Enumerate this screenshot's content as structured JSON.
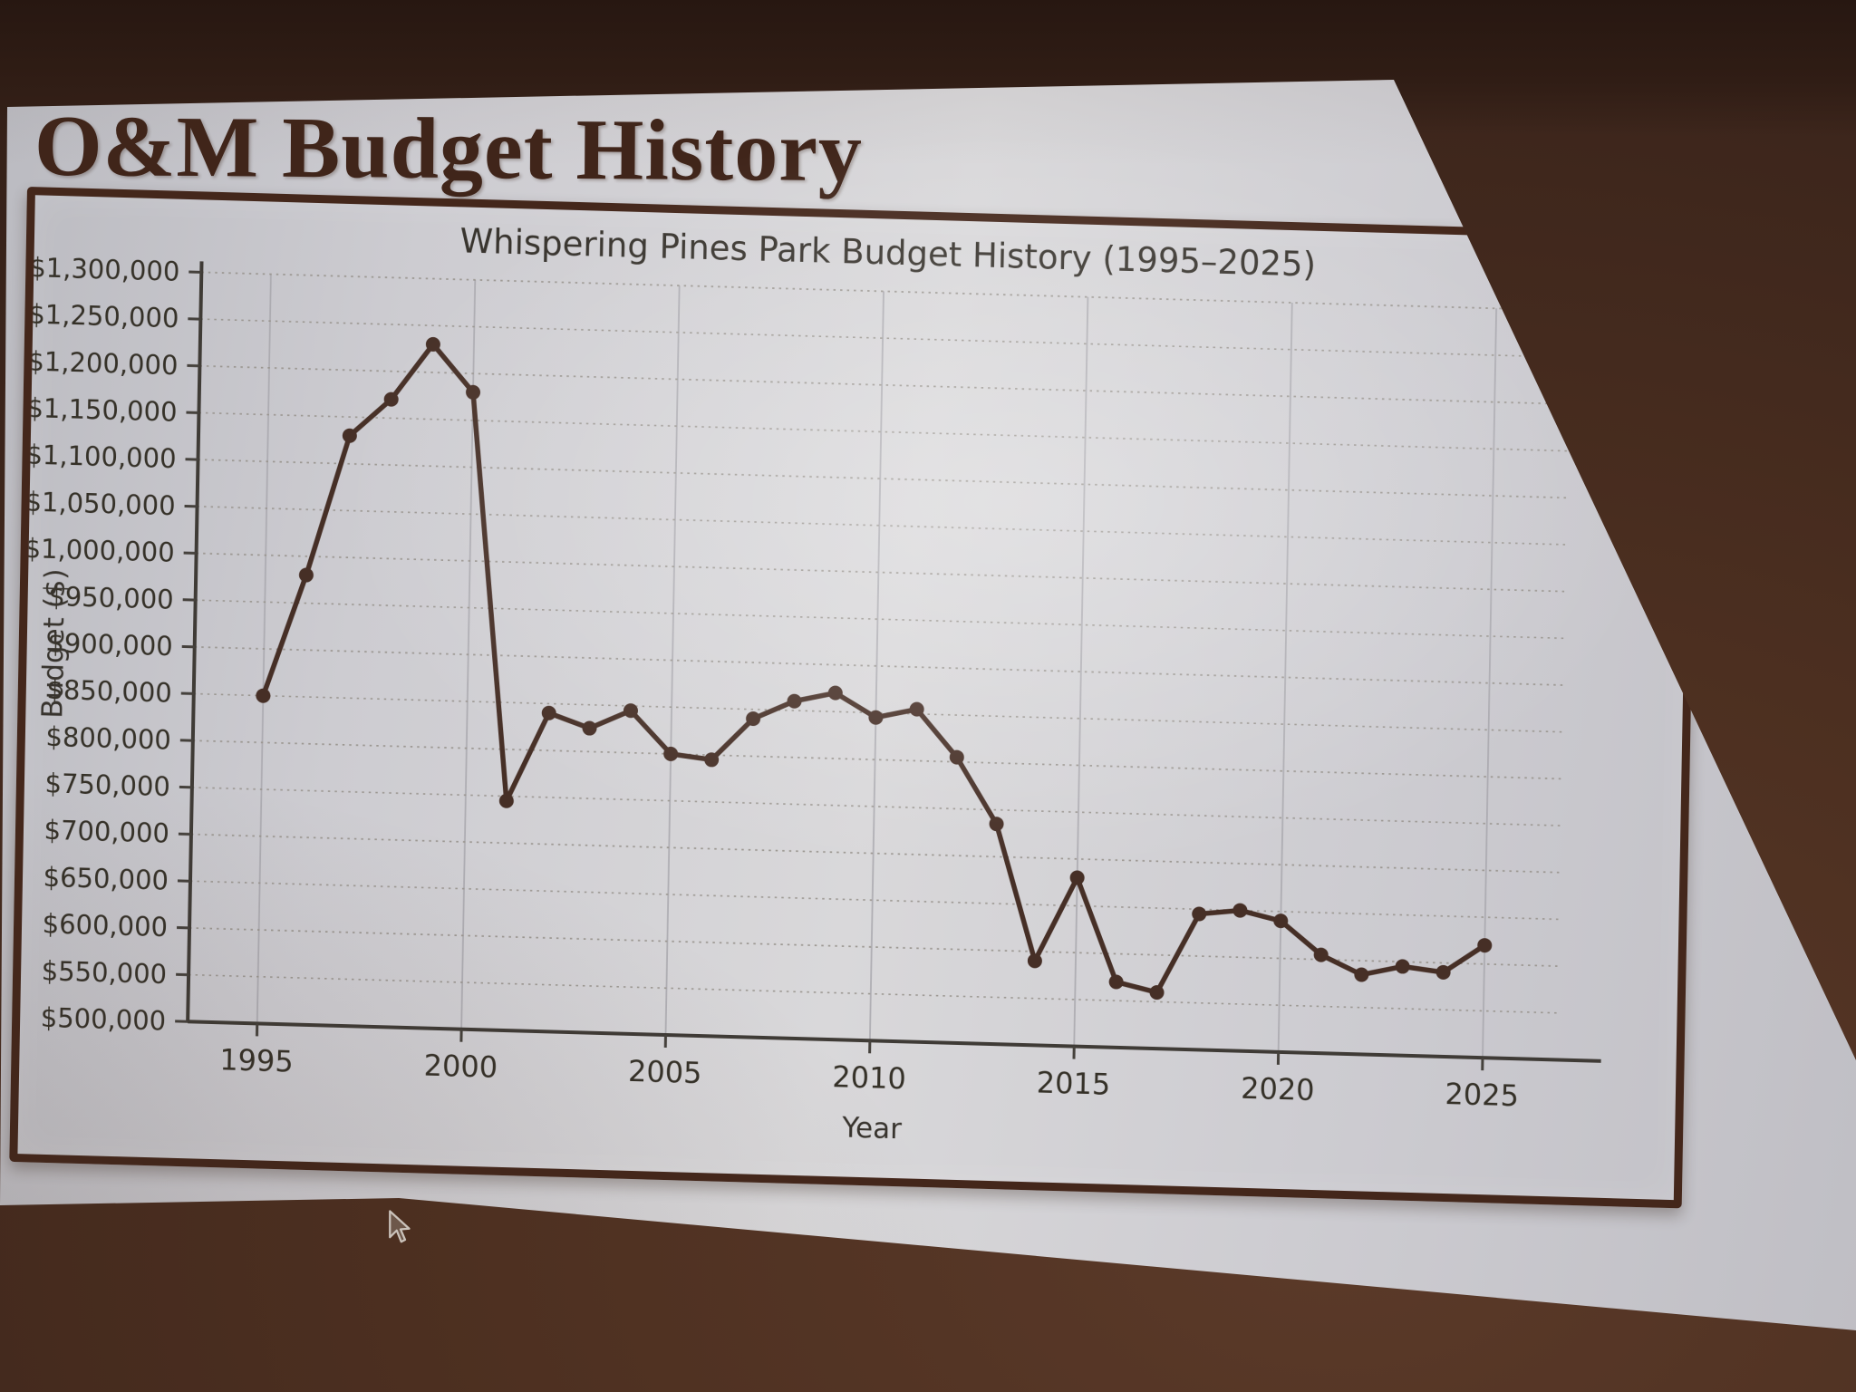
{
  "slide": {
    "heading": "O&M Budget History"
  },
  "colors": {
    "surround_dark_brown": "#35211a",
    "surface_brown": "#4c2f20",
    "page_white": "#cfced2",
    "ink_brown": "#44271b",
    "chart_line": "#462f26",
    "chart_text": "#38342e",
    "gridline": "#9a958f"
  },
  "pointer": {
    "icon": "mouse-cursor-arrow"
  },
  "chart_data": {
    "type": "line",
    "title": "Whispering Pines Park Budget History (1995–2025)",
    "xlabel": "Year",
    "ylabel": "Budget ($)",
    "series_name": "O&M Budget",
    "x": [
      1995,
      1996,
      1997,
      1998,
      1999,
      2000,
      2001,
      2002,
      2003,
      2004,
      2005,
      2006,
      2007,
      2008,
      2009,
      2010,
      2011,
      2012,
      2013,
      2014,
      2015,
      2016,
      2017,
      2018,
      2019,
      2020,
      2021,
      2022,
      2023,
      2024,
      2025
    ],
    "values": [
      850000,
      980000,
      1130000,
      1170000,
      1230000,
      1180000,
      745000,
      840000,
      825000,
      845000,
      800000,
      795000,
      840000,
      860000,
      870000,
      845000,
      855000,
      805000,
      735000,
      590000,
      680000,
      570000,
      560000,
      645000,
      650000,
      640000,
      605000,
      585000,
      595000,
      590000,
      620000
    ],
    "ylim": [
      500000,
      1300000
    ],
    "ytick_step": 50000,
    "yticks": [
      500000,
      550000,
      600000,
      650000,
      700000,
      750000,
      800000,
      850000,
      900000,
      950000,
      1000000,
      1050000,
      1100000,
      1150000,
      1200000,
      1250000,
      1300000
    ],
    "ytick_labels": [
      "$500,000",
      "$550,000",
      "$600,000",
      "$650,000",
      "$700,000",
      "$750,000",
      "$800,000",
      "$850,000",
      "$900,000",
      "$950,000",
      "$1,000,000",
      "$1,050,000",
      "$1,100,000",
      "$1,150,000",
      "$1,200,000",
      "$1,250,000",
      "$1,300,000"
    ],
    "xticks": [
      1995,
      2000,
      2005,
      2010,
      2015,
      2020,
      2025
    ],
    "xtick_labels": [
      "1995",
      "2000",
      "2005",
      "2010",
      "2015",
      "2020",
      "2025"
    ],
    "grid": {
      "horizontal": "dotted",
      "vertical": "solid"
    },
    "legend": null,
    "marker": "circle",
    "line_color": "#462f26"
  }
}
